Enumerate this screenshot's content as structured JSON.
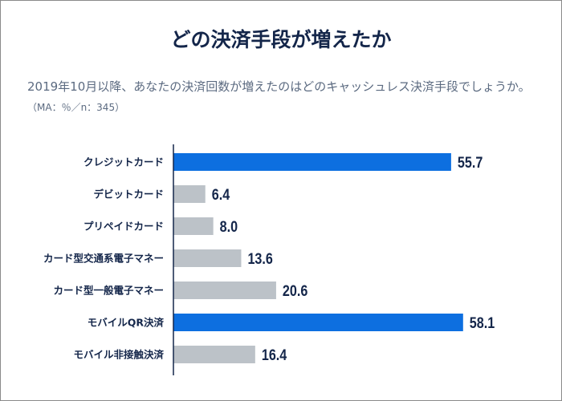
{
  "chart_data": {
    "type": "bar",
    "orientation": "horizontal",
    "title": "どの決済手段が増えたか",
    "subtitle": "2019年10月以降、あなたの決済回数が増えたのはどのキャッシュレス決済手段でしょうか。",
    "note": "（MA：％／n：345）",
    "categories": [
      "クレジットカード",
      "デビットカード",
      "プリペイドカード",
      "カード型交通系電子マネー",
      "カード型一般電子マネー",
      "モバイルQR決済",
      "モバイル非接触決済"
    ],
    "values": [
      55.7,
      6.4,
      8.0,
      13.6,
      20.6,
      58.1,
      16.4
    ],
    "highlighted": [
      true,
      false,
      false,
      false,
      false,
      true,
      false
    ],
    "colors": {
      "highlight": "#0d6fe0",
      "default": "#bcc2c8",
      "text": "#14264a"
    },
    "grid": false,
    "legend": "none"
  }
}
